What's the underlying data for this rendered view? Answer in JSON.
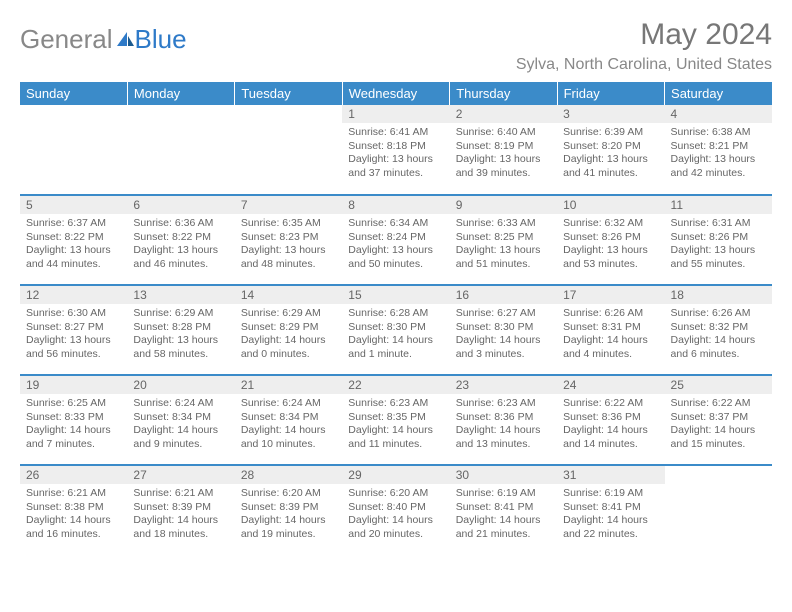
{
  "logo": {
    "prefix": "General",
    "suffix": "Blue"
  },
  "title": "May 2024",
  "location": "Sylva, North Carolina, United States",
  "weekdays": [
    "Sunday",
    "Monday",
    "Tuesday",
    "Wednesday",
    "Thursday",
    "Friday",
    "Saturday"
  ],
  "colors": {
    "header_bg": "#3b8bc9",
    "header_text": "#ffffff",
    "daynum_bg": "#eeeeee",
    "text": "#666666",
    "logo_grey": "#888888",
    "logo_blue": "#2e7ac8"
  },
  "weeks": [
    [
      {
        "n": "",
        "empty": true
      },
      {
        "n": "",
        "empty": true
      },
      {
        "n": "",
        "empty": true
      },
      {
        "n": "1",
        "sunrise": "6:41 AM",
        "sunset": "8:18 PM",
        "daylight": "13 hours and 37 minutes."
      },
      {
        "n": "2",
        "sunrise": "6:40 AM",
        "sunset": "8:19 PM",
        "daylight": "13 hours and 39 minutes."
      },
      {
        "n": "3",
        "sunrise": "6:39 AM",
        "sunset": "8:20 PM",
        "daylight": "13 hours and 41 minutes."
      },
      {
        "n": "4",
        "sunrise": "6:38 AM",
        "sunset": "8:21 PM",
        "daylight": "13 hours and 42 minutes."
      }
    ],
    [
      {
        "n": "5",
        "sunrise": "6:37 AM",
        "sunset": "8:22 PM",
        "daylight": "13 hours and 44 minutes."
      },
      {
        "n": "6",
        "sunrise": "6:36 AM",
        "sunset": "8:22 PM",
        "daylight": "13 hours and 46 minutes."
      },
      {
        "n": "7",
        "sunrise": "6:35 AM",
        "sunset": "8:23 PM",
        "daylight": "13 hours and 48 minutes."
      },
      {
        "n": "8",
        "sunrise": "6:34 AM",
        "sunset": "8:24 PM",
        "daylight": "13 hours and 50 minutes."
      },
      {
        "n": "9",
        "sunrise": "6:33 AM",
        "sunset": "8:25 PM",
        "daylight": "13 hours and 51 minutes."
      },
      {
        "n": "10",
        "sunrise": "6:32 AM",
        "sunset": "8:26 PM",
        "daylight": "13 hours and 53 minutes."
      },
      {
        "n": "11",
        "sunrise": "6:31 AM",
        "sunset": "8:26 PM",
        "daylight": "13 hours and 55 minutes."
      }
    ],
    [
      {
        "n": "12",
        "sunrise": "6:30 AM",
        "sunset": "8:27 PM",
        "daylight": "13 hours and 56 minutes."
      },
      {
        "n": "13",
        "sunrise": "6:29 AM",
        "sunset": "8:28 PM",
        "daylight": "13 hours and 58 minutes."
      },
      {
        "n": "14",
        "sunrise": "6:29 AM",
        "sunset": "8:29 PM",
        "daylight": "14 hours and 0 minutes."
      },
      {
        "n": "15",
        "sunrise": "6:28 AM",
        "sunset": "8:30 PM",
        "daylight": "14 hours and 1 minute."
      },
      {
        "n": "16",
        "sunrise": "6:27 AM",
        "sunset": "8:30 PM",
        "daylight": "14 hours and 3 minutes."
      },
      {
        "n": "17",
        "sunrise": "6:26 AM",
        "sunset": "8:31 PM",
        "daylight": "14 hours and 4 minutes."
      },
      {
        "n": "18",
        "sunrise": "6:26 AM",
        "sunset": "8:32 PM",
        "daylight": "14 hours and 6 minutes."
      }
    ],
    [
      {
        "n": "19",
        "sunrise": "6:25 AM",
        "sunset": "8:33 PM",
        "daylight": "14 hours and 7 minutes."
      },
      {
        "n": "20",
        "sunrise": "6:24 AM",
        "sunset": "8:34 PM",
        "daylight": "14 hours and 9 minutes."
      },
      {
        "n": "21",
        "sunrise": "6:24 AM",
        "sunset": "8:34 PM",
        "daylight": "14 hours and 10 minutes."
      },
      {
        "n": "22",
        "sunrise": "6:23 AM",
        "sunset": "8:35 PM",
        "daylight": "14 hours and 11 minutes."
      },
      {
        "n": "23",
        "sunrise": "6:23 AM",
        "sunset": "8:36 PM",
        "daylight": "14 hours and 13 minutes."
      },
      {
        "n": "24",
        "sunrise": "6:22 AM",
        "sunset": "8:36 PM",
        "daylight": "14 hours and 14 minutes."
      },
      {
        "n": "25",
        "sunrise": "6:22 AM",
        "sunset": "8:37 PM",
        "daylight": "14 hours and 15 minutes."
      }
    ],
    [
      {
        "n": "26",
        "sunrise": "6:21 AM",
        "sunset": "8:38 PM",
        "daylight": "14 hours and 16 minutes."
      },
      {
        "n": "27",
        "sunrise": "6:21 AM",
        "sunset": "8:39 PM",
        "daylight": "14 hours and 18 minutes."
      },
      {
        "n": "28",
        "sunrise": "6:20 AM",
        "sunset": "8:39 PM",
        "daylight": "14 hours and 19 minutes."
      },
      {
        "n": "29",
        "sunrise": "6:20 AM",
        "sunset": "8:40 PM",
        "daylight": "14 hours and 20 minutes."
      },
      {
        "n": "30",
        "sunrise": "6:19 AM",
        "sunset": "8:41 PM",
        "daylight": "14 hours and 21 minutes."
      },
      {
        "n": "31",
        "sunrise": "6:19 AM",
        "sunset": "8:41 PM",
        "daylight": "14 hours and 22 minutes."
      },
      {
        "n": "",
        "empty": true
      }
    ]
  ]
}
